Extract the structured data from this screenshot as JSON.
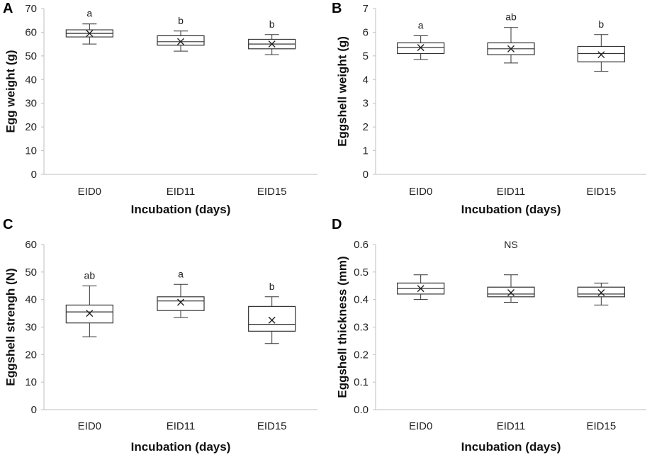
{
  "chart_data": [
    {
      "type": "box",
      "panel": "A",
      "ylabel": "Egg weight (g)",
      "xlabel": "Incubation (days)",
      "categories": [
        "EID0",
        "EID11",
        "EID15"
      ],
      "ylim": [
        0,
        70
      ],
      "yticks": [
        0,
        10,
        20,
        30,
        40,
        50,
        60,
        70
      ],
      "boxes": [
        {
          "min": 55,
          "q1": 58,
          "median": 59.5,
          "q3": 61,
          "max": 63.5,
          "mean": 59.5,
          "sig": "a"
        },
        {
          "min": 52,
          "q1": 54.5,
          "median": 56,
          "q3": 58.5,
          "max": 60.5,
          "mean": 56,
          "sig": "b"
        },
        {
          "min": 50.5,
          "q1": 53,
          "median": 55,
          "q3": 57,
          "max": 59,
          "mean": 55,
          "sig": "b"
        }
      ]
    },
    {
      "type": "box",
      "panel": "B",
      "ylabel": "Eggshell weight (g)",
      "xlabel": "Incubation (days)",
      "categories": [
        "EID0",
        "EID11",
        "EID15"
      ],
      "ylim": [
        0,
        7
      ],
      "yticks": [
        0,
        1,
        2,
        3,
        4,
        5,
        6,
        7
      ],
      "boxes": [
        {
          "min": 4.85,
          "q1": 5.1,
          "median": 5.35,
          "q3": 5.55,
          "max": 5.85,
          "mean": 5.35,
          "sig": "a"
        },
        {
          "min": 4.7,
          "q1": 5.05,
          "median": 5.3,
          "q3": 5.55,
          "max": 6.2,
          "mean": 5.3,
          "sig": "ab"
        },
        {
          "min": 4.35,
          "q1": 4.75,
          "median": 5.1,
          "q3": 5.4,
          "max": 5.9,
          "mean": 5.05,
          "sig": "b"
        }
      ]
    },
    {
      "type": "box",
      "panel": "C",
      "ylabel": "Eggshell strengh (N)",
      "xlabel": "Incubation (days)",
      "categories": [
        "EID0",
        "EID11",
        "EID15"
      ],
      "ylim": [
        0,
        60
      ],
      "yticks": [
        0,
        10,
        20,
        30,
        40,
        50,
        60
      ],
      "boxes": [
        {
          "min": 26.5,
          "q1": 31.5,
          "median": 35.5,
          "q3": 38,
          "max": 45,
          "mean": 35,
          "sig": "ab"
        },
        {
          "min": 33.5,
          "q1": 36,
          "median": 39.5,
          "q3": 41,
          "max": 45.5,
          "mean": 39,
          "sig": "a"
        },
        {
          "min": 24,
          "q1": 28.5,
          "median": 31,
          "q3": 37.5,
          "max": 41,
          "mean": 32.5,
          "sig": "b"
        }
      ]
    },
    {
      "type": "box",
      "panel": "D",
      "ylabel": "Eggshell thickness (mm)",
      "xlabel": "Incubation (days)",
      "categories": [
        "EID0",
        "EID11",
        "EID15"
      ],
      "ylim": [
        0,
        0.6
      ],
      "yticks": [
        0,
        0.1,
        0.2,
        0.3,
        0.4,
        0.5,
        0.6
      ],
      "annotation": "NS",
      "boxes": [
        {
          "min": 0.4,
          "q1": 0.42,
          "median": 0.44,
          "q3": 0.46,
          "max": 0.49,
          "mean": 0.44,
          "sig": ""
        },
        {
          "min": 0.39,
          "q1": 0.41,
          "median": 0.42,
          "q3": 0.445,
          "max": 0.49,
          "mean": 0.425,
          "sig": ""
        },
        {
          "min": 0.38,
          "q1": 0.41,
          "median": 0.42,
          "q3": 0.445,
          "max": 0.46,
          "mean": 0.425,
          "sig": ""
        }
      ]
    }
  ]
}
